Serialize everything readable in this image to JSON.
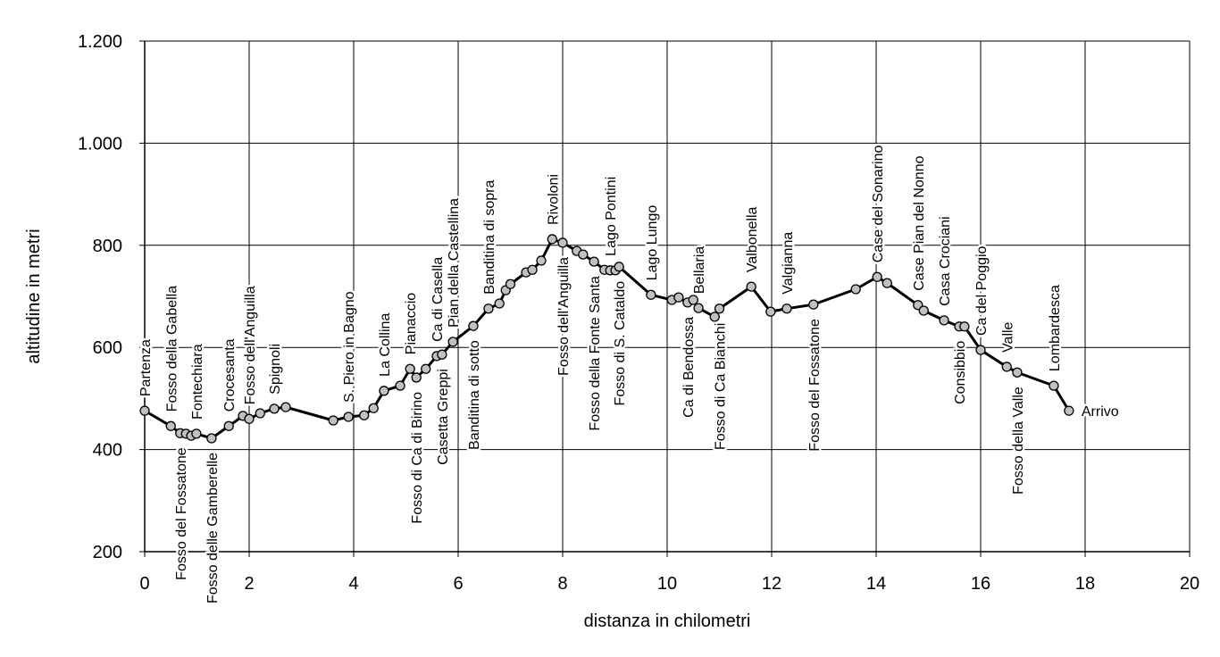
{
  "chart_data": {
    "type": "line",
    "xlabel": "distanza in chilometri",
    "ylabel": "altitudine  in metri",
    "xlim": [
      0,
      20
    ],
    "ylim": [
      200,
      1200
    ],
    "xticks": [
      0,
      2,
      4,
      6,
      8,
      10,
      12,
      14,
      16,
      18,
      20
    ],
    "yticks": [
      200,
      400,
      600,
      800,
      {
        "value": 1000,
        "label": "1.000"
      },
      {
        "value": 1200,
        "label": "1.200"
      }
    ],
    "grid": true,
    "color": "#000000",
    "marker_color": "#c0c0c0",
    "x": [
      0,
      0.5,
      0.68,
      0.79,
      0.89,
      0.99,
      1.28,
      1.61,
      1.88,
      2.0,
      2.21,
      2.48,
      2.7,
      3.61,
      3.9,
      4.2,
      4.38,
      4.58,
      4.89,
      5.08,
      5.2,
      5.38,
      5.59,
      5.69,
      5.9,
      6.29,
      6.58,
      6.79,
      6.91,
      7.0,
      7.3,
      7.42,
      7.59,
      7.8,
      8.0,
      8.27,
      8.39,
      8.6,
      8.8,
      8.91,
      9.01,
      9.08,
      9.69,
      10.09,
      10.22,
      10.39,
      10.5,
      10.6,
      10.91,
      11.0,
      11.61,
      11.98,
      12.29,
      12.8,
      13.61,
      14.02,
      14.21,
      14.8,
      14.91,
      15.3,
      15.59,
      15.69,
      16.0,
      16.5,
      16.7,
      17.4,
      17.69
    ],
    "values": [
      476,
      446,
      432,
      431,
      427,
      431,
      422,
      446,
      466,
      460,
      471,
      480,
      483,
      457,
      464,
      467,
      481,
      515,
      525,
      558,
      541,
      558,
      583,
      586,
      611,
      642,
      676,
      686,
      712,
      724,
      747,
      752,
      770,
      812,
      805,
      789,
      782,
      768,
      752,
      751,
      751,
      758,
      703,
      693,
      698,
      688,
      693,
      677,
      660,
      676,
      719,
      670,
      676,
      684,
      714,
      738,
      726,
      683,
      672,
      653,
      641,
      641,
      595,
      562,
      551,
      525,
      476
    ],
    "point_labels": [
      "Partenza",
      "Fosso della Gabella",
      "Fosso del Fossatone",
      null,
      null,
      "Fontechiara",
      "Fosso delle Gamberelle",
      "Crocesanta",
      null,
      "Fosso dell'Anguilla",
      null,
      "Spignoli",
      null,
      null,
      "S. Piero in Bagno",
      null,
      null,
      "La Collina",
      null,
      "Pianaccio",
      "Fosso di Ca di Birino",
      null,
      "Ca di Casella",
      "Casetta Greppi",
      "Pian della Castellina",
      "Banditina di sotto",
      "Banditina di sopra",
      null,
      null,
      null,
      null,
      null,
      null,
      "Rivoloni",
      "Fosso dell'Anguilla",
      null,
      null,
      "Fosso della Fonte Santa",
      null,
      "Lago Pontini",
      null,
      "Fosso di S. Cataldo",
      "Lago Lungo",
      null,
      null,
      "Ca di Bendossa",
      null,
      "Bellaria",
      null,
      "Fosso di Ca Bianchi",
      "Valbonella",
      null,
      "Valgianna",
      "Fosso del Fossatone",
      null,
      "Case del Sonarino",
      null,
      "Case Pian del Nonno",
      null,
      "Casa Crociani",
      "Consibbio",
      null,
      "Ca del Poggio",
      "Valle",
      "Fosso della Valle",
      "Lombardesca",
      "Arrivo"
    ]
  }
}
